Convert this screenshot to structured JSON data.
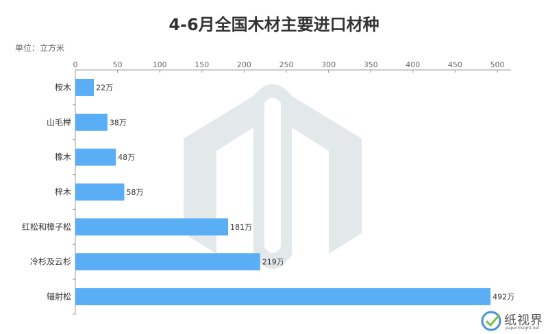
{
  "title": "4-6月全国木材主要进口材种",
  "unit_label": "单位：立方米",
  "brand": {
    "name": "纸视界",
    "url": "paperinsight.net"
  },
  "colors": {
    "bar": "#5aaef5",
    "axis": "#999999",
    "watermark": "#e3e8ea"
  },
  "chart_data": {
    "type": "bar",
    "orientation": "horizontal",
    "title": "4-6月全国木材主要进口材种",
    "unit": "单位：立方米",
    "categories": [
      "桉木",
      "山毛榉",
      "橡木",
      "梓木",
      "红松和樟子松",
      "冷杉及云杉",
      "辐射松"
    ],
    "values": [
      22,
      38,
      48,
      58,
      181,
      219,
      492
    ],
    "data_labels": [
      "22万",
      "38万",
      "48万",
      "58万",
      "181万",
      "219万",
      "492万"
    ],
    "xlim": [
      0,
      500
    ],
    "xticks": [
      0,
      50,
      100,
      150,
      200,
      250,
      300,
      350,
      400,
      450,
      500
    ],
    "axis_position": "top",
    "grid": false,
    "legend": "none"
  }
}
